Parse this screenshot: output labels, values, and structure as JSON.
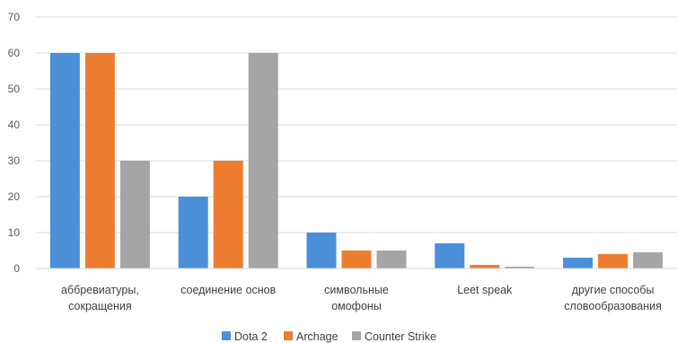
{
  "chart_data": {
    "type": "bar",
    "categories": [
      [
        "аббревиатуры,",
        "сокращения"
      ],
      [
        "соединение основ"
      ],
      [
        "символьные",
        "омофоны"
      ],
      [
        "Leet speak"
      ],
      [
        "другие способы",
        "словообразования"
      ]
    ],
    "series": [
      {
        "name": "Dota 2",
        "color": "#4a8fd8",
        "values": [
          60,
          20,
          10,
          7,
          3
        ]
      },
      {
        "name": "Archage",
        "color": "#ed7d31",
        "values": [
          60,
          30,
          5,
          1,
          4
        ]
      },
      {
        "name": "Counter Strike",
        "color": "#a5a5a5",
        "values": [
          30,
          60,
          5,
          0.5,
          4.5
        ]
      }
    ],
    "ylim": [
      0,
      70
    ],
    "yticks": [
      0,
      10,
      20,
      30,
      40,
      50,
      60,
      70
    ],
    "grid": true,
    "legend": "bottom-center"
  }
}
